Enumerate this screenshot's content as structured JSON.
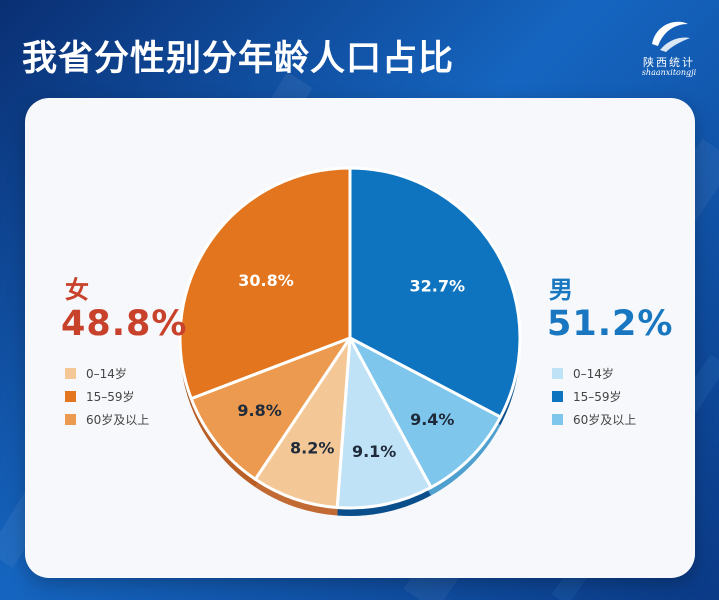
{
  "title": "我省分性别分年龄人口占比",
  "logo": {
    "name_cn": "陕西统计",
    "name_en": "shaanxitongji"
  },
  "chart_data": {
    "type": "pie",
    "groups": [
      {
        "key": "female",
        "label": "女",
        "percent": "48.8%",
        "value": 48.8,
        "color": "#c8412a"
      },
      {
        "key": "male",
        "label": "男",
        "percent": "51.2%",
        "value": 51.2,
        "color": "#1877c0"
      }
    ],
    "slices": [
      {
        "gender": "male",
        "age": "15–59岁",
        "value": 32.7,
        "label": "32.7%",
        "color": "#0e74bf",
        "side": "#0a4f8c",
        "label_color": "#ffffff"
      },
      {
        "gender": "male",
        "age": "60岁及以上",
        "value": 9.4,
        "label": "9.4%",
        "color": "#7ec6ec",
        "side": "#4f9fcf",
        "label_color": "#1f2a3a"
      },
      {
        "gender": "male",
        "age": "0–14岁",
        "value": 9.1,
        "label": "9.1%",
        "color": "#c0e2f6",
        "side": "#0a4f8c",
        "label_color": "#1f2a3a"
      },
      {
        "gender": "female",
        "age": "0–14岁",
        "value": 8.2,
        "label": "8.2%",
        "color": "#f4c896",
        "side": "#c26a33",
        "label_color": "#1f2a3a"
      },
      {
        "gender": "female",
        "age": "60岁及以上",
        "value": 9.8,
        "label": "9.8%",
        "color": "#ec9a4f",
        "side": "#b95f25",
        "label_color": "#1f2a3a"
      },
      {
        "gender": "female",
        "age": "15–59岁",
        "value": 30.8,
        "label": "30.8%",
        "color": "#e2751d",
        "side": "#a8501a",
        "label_color": "#ffffff"
      }
    ]
  },
  "legend_female": [
    {
      "label": "0–14岁",
      "color": "#f4c896"
    },
    {
      "label": "15–59岁",
      "color": "#e2751d"
    },
    {
      "label": "60岁及以上",
      "color": "#ec9a4f"
    }
  ],
  "legend_male": [
    {
      "label": "0–14岁",
      "color": "#c0e2f6"
    },
    {
      "label": "15–59岁",
      "color": "#0e74bf"
    },
    {
      "label": "60岁及以上",
      "color": "#7ec6ec"
    }
  ]
}
